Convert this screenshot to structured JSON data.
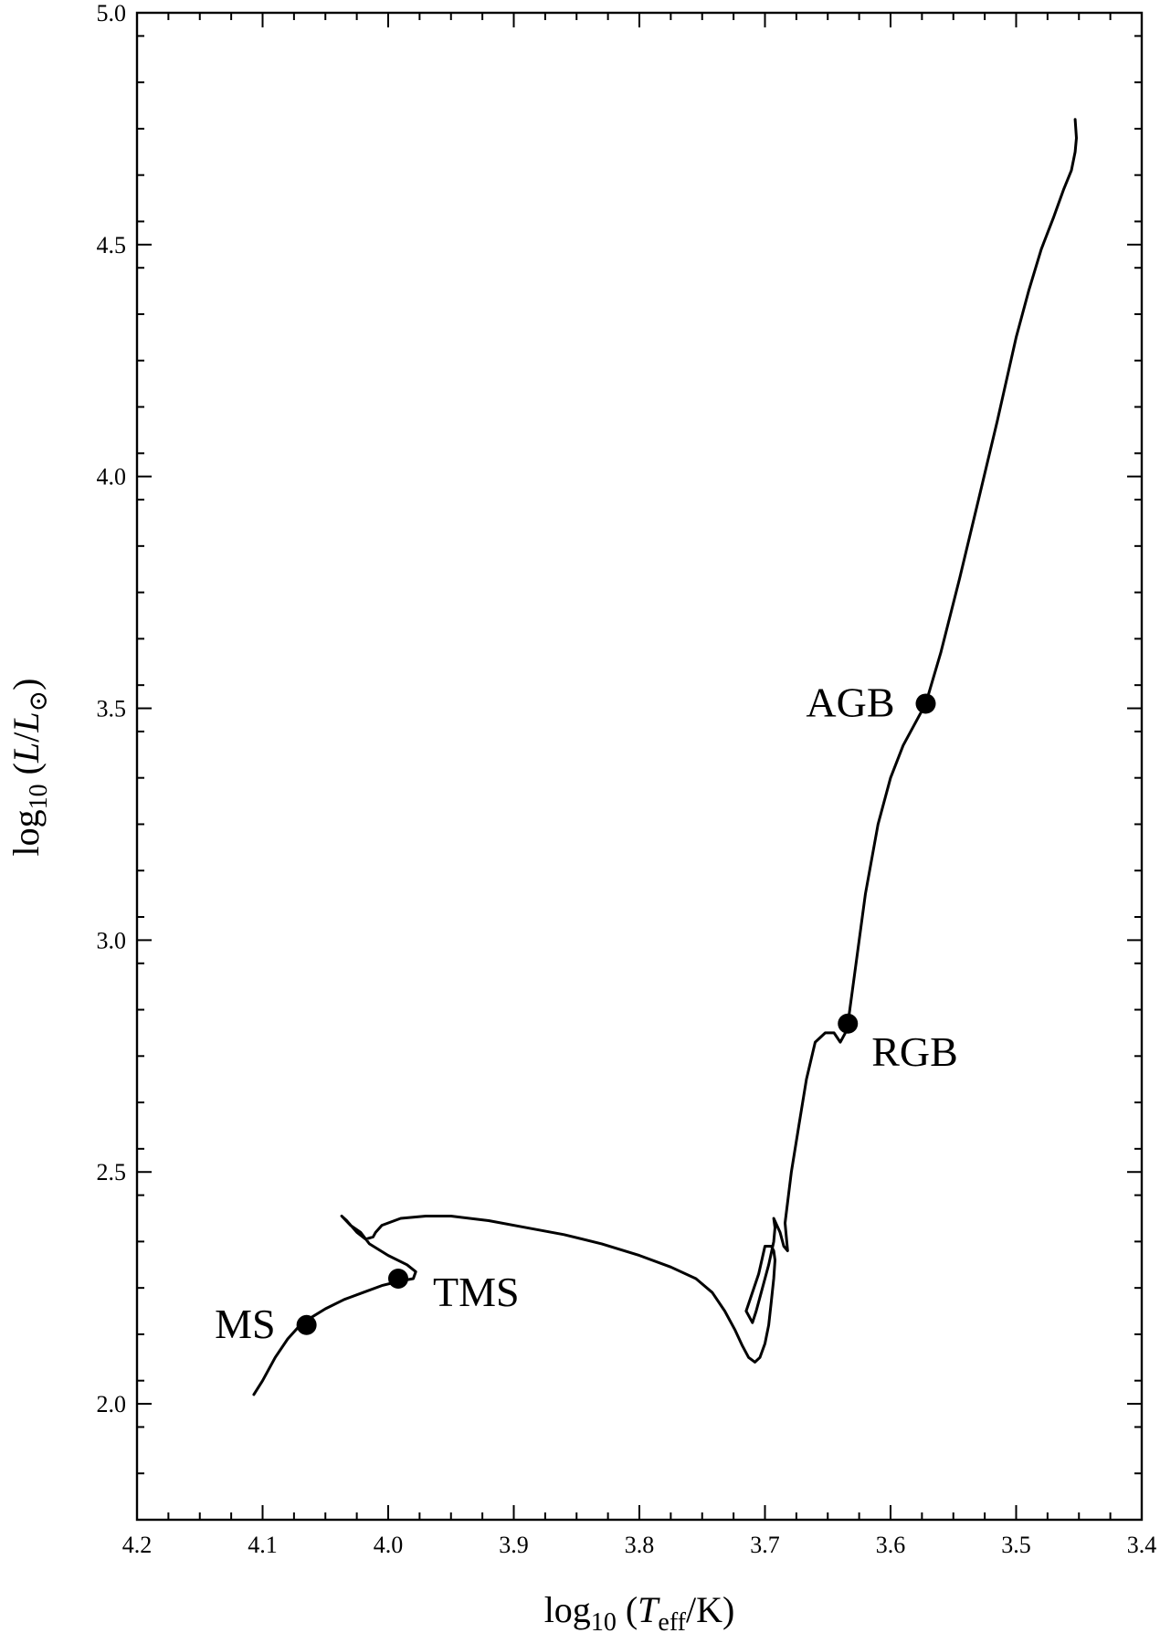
{
  "chart_data": {
    "type": "line",
    "title": "",
    "xlabel": {
      "base": "log",
      "sub": "10",
      "open": " (",
      "italic": "T",
      "italic_sub": "eff",
      "close": "/K)"
    },
    "ylabel": {
      "base": "log",
      "sub": "10",
      "open": " (",
      "italic1": "L",
      "slash": "/",
      "italic2": "L",
      "italic2_sub": "⊙",
      "close": ")"
    },
    "xlim": [
      4.2,
      3.4
    ],
    "ylim": [
      1.75,
      5.0
    ],
    "x_reversed": true,
    "x_ticks": [
      4.2,
      4.1,
      4.0,
      3.9,
      3.8,
      3.7,
      3.6,
      3.5,
      3.4
    ],
    "x_tick_labels": [
      "4.2",
      "4.1",
      "4.0",
      "3.9",
      "3.8",
      "3.7",
      "3.6",
      "3.5",
      "3.4"
    ],
    "x_minor_step": 0.025,
    "y_ticks": [
      2.0,
      2.5,
      3.0,
      3.5,
      4.0,
      4.5,
      5.0
    ],
    "y_tick_labels": [
      "2.0",
      "2.5",
      "3.0",
      "3.5",
      "4.0",
      "4.5",
      "5.0"
    ],
    "y_minor_step": 0.1,
    "grid": false,
    "series": [
      {
        "x": [
          4.107,
          4.1,
          4.09,
          4.08,
          4.07,
          4.065,
          4.05,
          4.035,
          4.02,
          4.005,
          3.99,
          3.98,
          3.978,
          3.985,
          4.0,
          4.015,
          4.022,
          4.03,
          4.037,
          4.033,
          4.025,
          4.018,
          4.012,
          4.01,
          4.005,
          3.99,
          3.97,
          3.95,
          3.92,
          3.89,
          3.86,
          3.83,
          3.8,
          3.775,
          3.755,
          3.742,
          3.732,
          3.724,
          3.718,
          3.713,
          3.708,
          3.704,
          3.7,
          3.697,
          3.695,
          3.693,
          3.692,
          3.693,
          3.695,
          3.7,
          3.705,
          3.715,
          3.71,
          3.707,
          3.703,
          3.697,
          3.693,
          3.692,
          3.693,
          3.688,
          3.685,
          3.682,
          3.684,
          3.679,
          3.673,
          3.667,
          3.66,
          3.652,
          3.645,
          3.64,
          3.636,
          3.634,
          3.63,
          3.62,
          3.61,
          3.6,
          3.59,
          3.58,
          3.572,
          3.56,
          3.545,
          3.53,
          3.515,
          3.5,
          3.49,
          3.48,
          3.47,
          3.462,
          3.456,
          3.453,
          3.452,
          3.453
        ],
        "y": [
          2.02,
          2.05,
          2.1,
          2.14,
          2.17,
          2.18,
          2.205,
          2.225,
          2.24,
          2.255,
          2.265,
          2.27,
          2.285,
          2.3,
          2.32,
          2.345,
          2.37,
          2.385,
          2.405,
          2.395,
          2.37,
          2.355,
          2.36,
          2.37,
          2.385,
          2.4,
          2.405,
          2.405,
          2.395,
          2.38,
          2.365,
          2.345,
          2.32,
          2.295,
          2.27,
          2.24,
          2.2,
          2.16,
          2.125,
          2.1,
          2.09,
          2.1,
          2.13,
          2.17,
          2.22,
          2.27,
          2.31,
          2.33,
          2.34,
          2.34,
          2.28,
          2.2,
          2.175,
          2.2,
          2.24,
          2.3,
          2.35,
          2.38,
          2.4,
          2.37,
          2.34,
          2.33,
          2.39,
          2.5,
          2.6,
          2.7,
          2.78,
          2.8,
          2.8,
          2.78,
          2.8,
          2.82,
          2.9,
          3.1,
          3.25,
          3.35,
          3.42,
          3.47,
          3.51,
          3.62,
          3.78,
          3.95,
          4.12,
          4.3,
          4.4,
          4.49,
          4.56,
          4.62,
          4.66,
          4.7,
          4.73,
          4.77
        ]
      }
    ],
    "annotations": [
      {
        "label": "MS",
        "x": 4.065,
        "y": 2.17,
        "side": "left"
      },
      {
        "label": "TMS",
        "x": 3.992,
        "y": 2.27,
        "side": "right"
      },
      {
        "label": "RGB",
        "x": 3.634,
        "y": 2.82,
        "side": "below-right"
      },
      {
        "label": "AGB",
        "x": 3.572,
        "y": 3.51,
        "side": "left"
      }
    ]
  }
}
